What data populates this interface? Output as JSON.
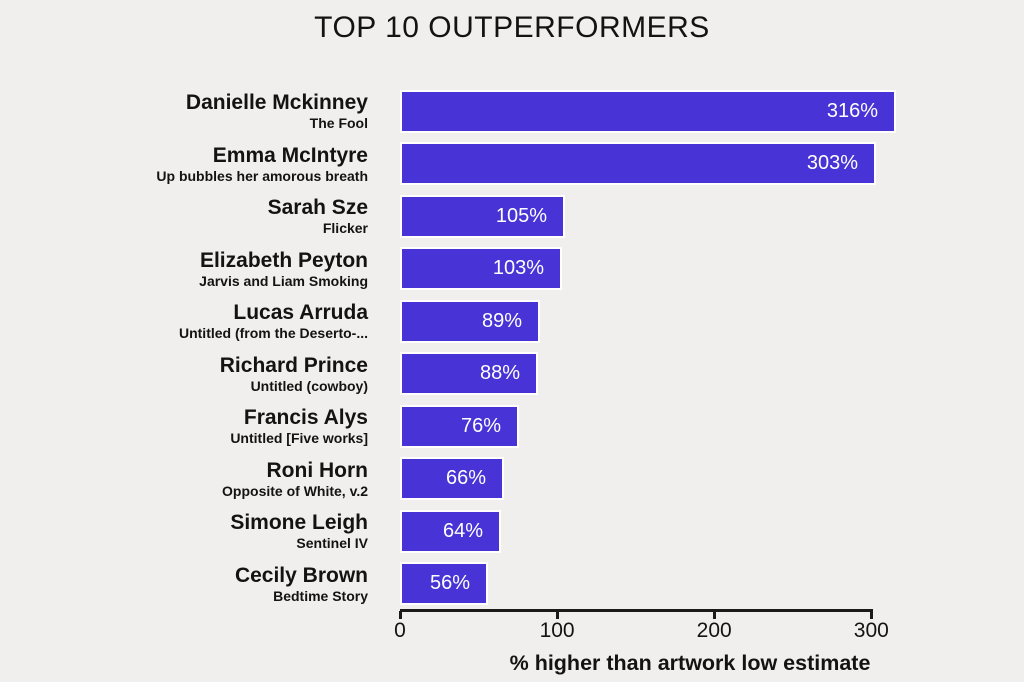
{
  "title": "TOP 10 OUTPERFORMERS",
  "colors": {
    "background": "#f0efed",
    "bar": "#4733d6",
    "bar_label": "#ffffff",
    "text": "#131313",
    "axis": "#1a1a1a"
  },
  "chart_data": {
    "type": "bar",
    "orientation": "horizontal",
    "title": "TOP 10 OUTPERFORMERS",
    "xlabel": "% higher than artwork low estimate",
    "xlim": [
      0,
      320
    ],
    "x_ticks": [
      0,
      100,
      200,
      300
    ],
    "grid": false,
    "legend": null,
    "items": [
      {
        "artist": "Danielle Mckinney",
        "artwork": "The Fool",
        "value": 316,
        "label": "316%"
      },
      {
        "artist": "Emma McIntyre",
        "artwork": "Up bubbles her amorous breath",
        "value": 303,
        "label": "303%"
      },
      {
        "artist": "Sarah Sze",
        "artwork": "Flicker",
        "value": 105,
        "label": "105%"
      },
      {
        "artist": "Elizabeth Peyton",
        "artwork": "Jarvis and Liam Smoking",
        "value": 103,
        "label": "103%"
      },
      {
        "artist": "Lucas Arruda",
        "artwork": "Untitled (from the Deserto-...",
        "value": 89,
        "label": "89%"
      },
      {
        "artist": "Richard Prince",
        "artwork": "Untitled (cowboy)",
        "value": 88,
        "label": "88%"
      },
      {
        "artist": "Francis Alys",
        "artwork": "Untitled [Five works]",
        "value": 76,
        "label": "76%"
      },
      {
        "artist": "Roni Horn",
        "artwork": "Opposite of White, v.2",
        "value": 66,
        "label": "66%"
      },
      {
        "artist": "Simone Leigh",
        "artwork": "Sentinel IV",
        "value": 64,
        "label": "64%"
      },
      {
        "artist": "Cecily Brown",
        "artwork": "Bedtime Story",
        "value": 56,
        "label": "56%"
      }
    ]
  }
}
